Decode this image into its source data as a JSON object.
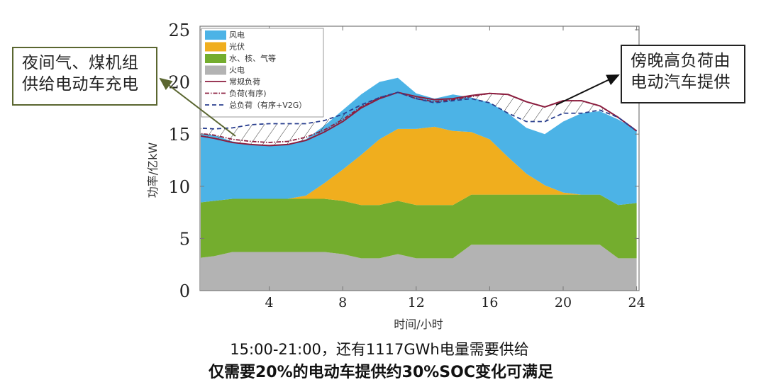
{
  "annotations": {
    "left": [
      "夜间气、煤机组",
      "供给电动车充电"
    ],
    "right": [
      "傍晚高负荷由",
      "电动汽车提供"
    ]
  },
  "captions": {
    "line1": "15:00-21:00，还有1117GWh电量需要供给",
    "line2": "仅需要20%的电动车提供约30%SOC变化可满足"
  },
  "colors": {
    "wind": "#4cb3e6",
    "solar": "#f0ae1e",
    "hydro": "#74ad2e",
    "thermal": "#b3b3b3",
    "load_regular": "#8b1e3f",
    "load_ordered": "#8b1e3f",
    "load_total": "#2a3f8f"
  },
  "chart_data": {
    "type": "area",
    "title": "",
    "xlabel": "时间/小时",
    "ylabel": "功率/亿kW",
    "xlim": [
      0,
      24
    ],
    "ylim": [
      0,
      25
    ],
    "xticks": [
      4,
      8,
      12,
      16,
      20,
      24
    ],
    "yticks": [
      0,
      5,
      10,
      15,
      20,
      25
    ],
    "grid": false,
    "legend_position": "upper left",
    "legend": [
      "风电",
      "光伏",
      "水、核、气等",
      "火电",
      "常规负荷",
      "负荷(有序)",
      "总负荷（有序+V2G）"
    ],
    "x": [
      0.27,
      1,
      2,
      3,
      4,
      5,
      6,
      7,
      8,
      9,
      10,
      11,
      12,
      13,
      14,
      15,
      16,
      17,
      18,
      19,
      20,
      21,
      22,
      23,
      24
    ],
    "stacked_series": [
      {
        "name": "火电",
        "key": "thermal",
        "values": [
          3.1,
          3.3,
          3.7,
          3.7,
          3.7,
          3.7,
          3.7,
          3.7,
          3.5,
          3.1,
          3.1,
          3.5,
          3.1,
          3.1,
          3.1,
          4.4,
          4.4,
          4.4,
          4.4,
          4.4,
          4.4,
          4.4,
          4.4,
          3.1,
          3.1
        ]
      },
      {
        "name": "水、核、气等",
        "key": "hydro",
        "values": [
          5.3,
          5.3,
          5.1,
          5.1,
          5.1,
          5.1,
          5.1,
          5.1,
          5.1,
          5.1,
          5.1,
          5.1,
          5.1,
          5.1,
          5.1,
          4.8,
          4.8,
          4.8,
          4.8,
          4.8,
          4.8,
          4.8,
          4.8,
          5.1,
          5.3
        ]
      },
      {
        "name": "光伏",
        "key": "solar",
        "values": [
          0,
          0,
          0,
          0,
          0,
          0,
          0.3,
          1.5,
          3.0,
          4.8,
          6.3,
          6.9,
          7.3,
          7.5,
          7.1,
          6.0,
          5.3,
          3.6,
          2.0,
          0.9,
          0.2,
          0,
          0,
          0,
          0
        ]
      },
      {
        "name": "风电",
        "key": "wind",
        "values": [
          6.6,
          6.3,
          5.5,
          5.2,
          5.1,
          5.2,
          5.4,
          5.5,
          5.7,
          5.8,
          5.5,
          4.9,
          3.4,
          2.7,
          3.5,
          3.3,
          3.5,
          4.2,
          4.4,
          4.9,
          6.8,
          7.8,
          8.0,
          8.2,
          7.0
        ]
      }
    ],
    "line_series": [
      {
        "name": "常规负荷",
        "style": "solid",
        "key": "load_regular",
        "values": [
          14.9,
          14.6,
          14.2,
          14.0,
          13.9,
          14.0,
          14.4,
          15.2,
          16.2,
          17.5,
          18.4,
          19.0,
          18.6,
          18.3,
          18.4,
          18.7,
          18.9,
          18.8,
          18.1,
          17.6,
          18.2,
          18.2,
          17.7,
          16.6,
          15.3
        ]
      },
      {
        "name": "负荷(有序)",
        "style": "dashdot",
        "key": "load_ordered",
        "values": [
          15.1,
          14.9,
          14.5,
          14.3,
          14.2,
          14.3,
          14.7,
          15.4,
          16.4,
          17.6,
          18.5,
          19.0,
          18.4,
          18.1,
          18.3,
          18.6,
          18.9,
          18.8,
          18.1,
          17.6,
          18.2,
          18.2,
          17.7,
          16.6,
          15.3
        ]
      },
      {
        "name": "总负荷（有序+V2G）",
        "style": "dashed",
        "key": "load_total",
        "values": [
          15.6,
          15.5,
          15.6,
          15.9,
          16.0,
          16.0,
          16.0,
          16.3,
          16.9,
          17.8,
          18.5,
          19.0,
          18.4,
          18.0,
          18.2,
          18.4,
          18.0,
          17.0,
          16.2,
          16.2,
          17.0,
          17.0,
          17.3,
          16.6,
          15.3
        ]
      }
    ]
  }
}
